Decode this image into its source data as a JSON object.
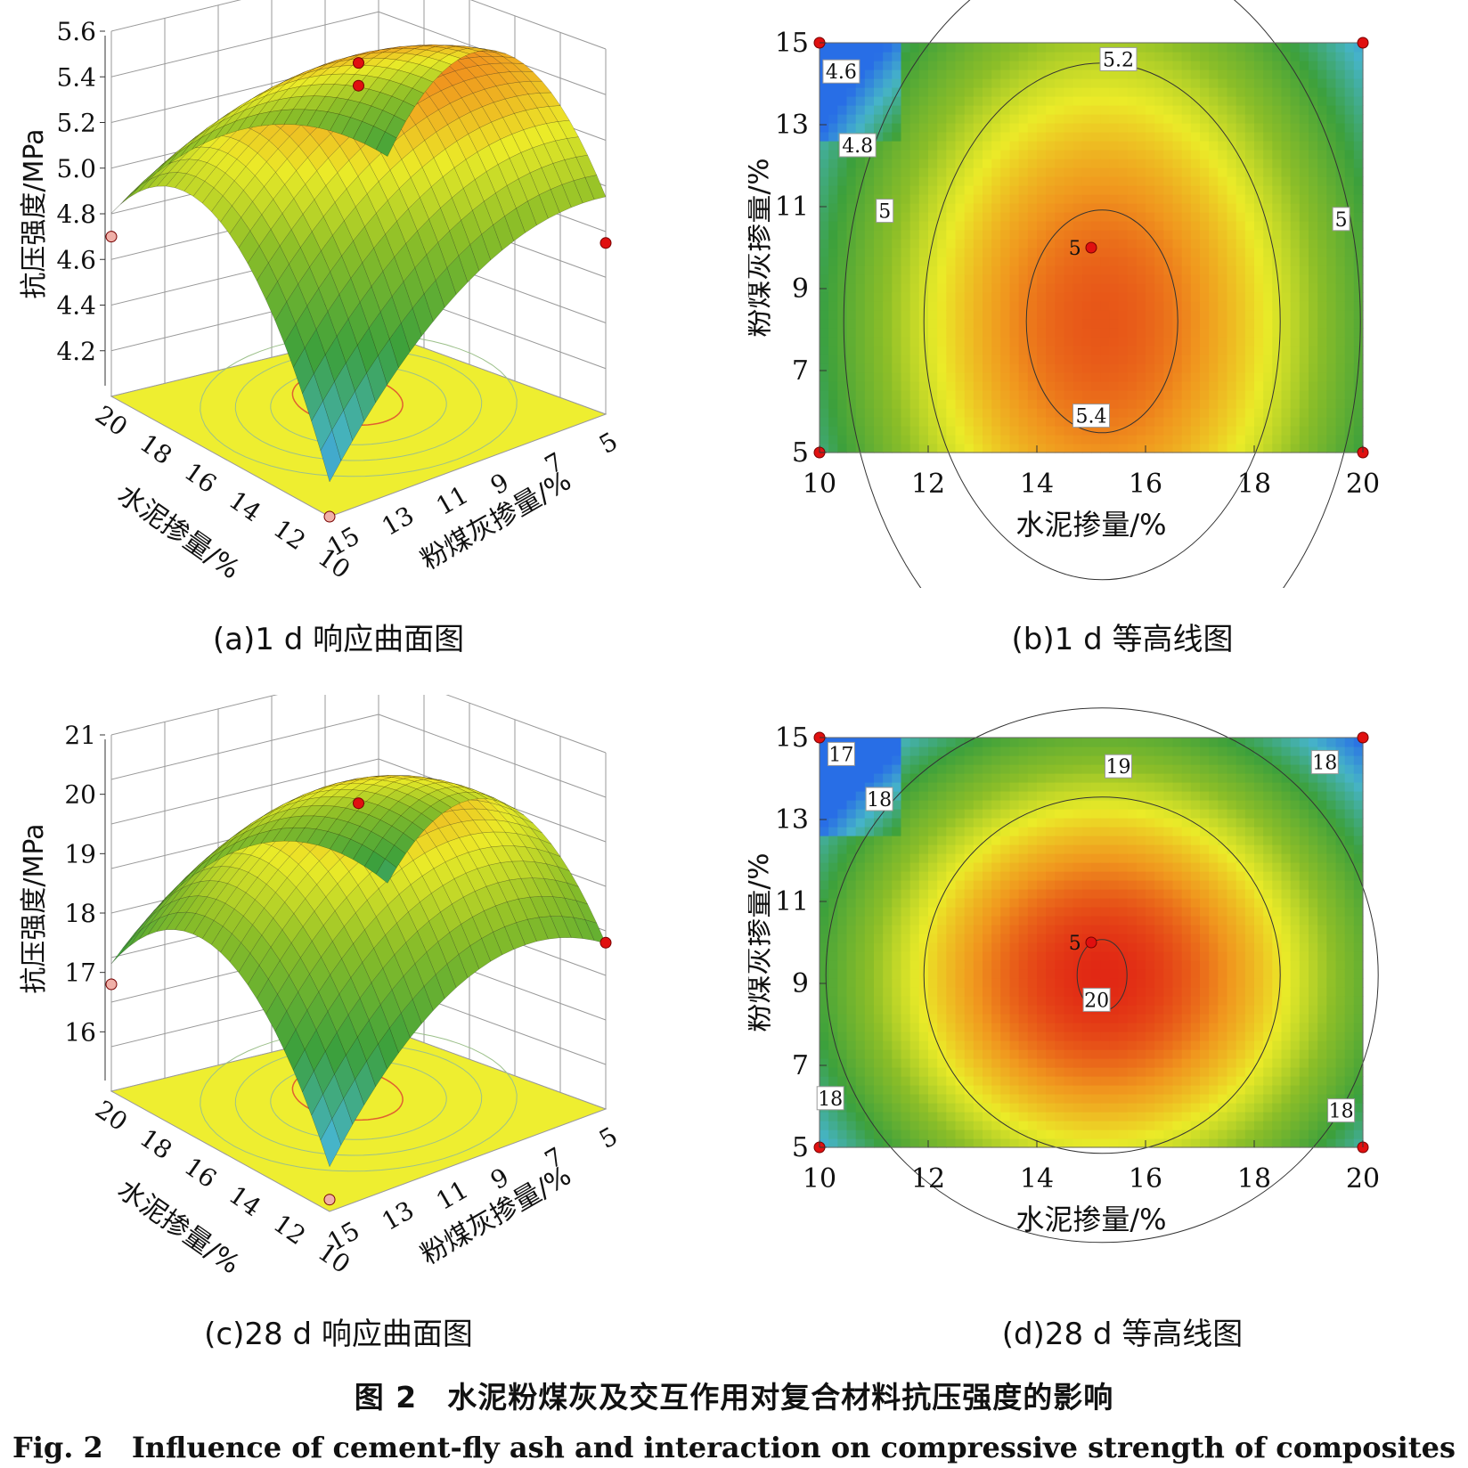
{
  "figure": {
    "title_cn": "图 2　水泥粉煤灰及交互作用对复合材料抗压强度的影响",
    "title_en": "Fig. 2　Influence of cement-fly ash and interaction on compressive strength of composites"
  },
  "chart_data": [
    {
      "id": "a",
      "type": "surface3d",
      "caption": "(a)1 d 响应曲面图",
      "zlabel": "抗压强度/MPa",
      "xlabel": "水泥掺量/%",
      "ylabel": "粉煤灰掺量/%",
      "z_ticks": [
        "4.2",
        "4.4",
        "4.6",
        "4.8",
        "5.0",
        "5.2",
        "5.4",
        "5.6"
      ],
      "x_ticks": [
        "20",
        "18",
        "16",
        "14",
        "12",
        "10"
      ],
      "y_ticks": [
        "15",
        "13",
        "11",
        "9",
        "7",
        "5"
      ],
      "zlim": [
        4.0,
        5.6
      ],
      "x_range": [
        10,
        20
      ],
      "y_range": [
        5,
        15
      ],
      "peak": {
        "cement": 15,
        "flyash": 8.5,
        "strength": 5.45
      },
      "design_points": [
        {
          "cement": 15,
          "flyash": 10,
          "strength": 5.5
        },
        {
          "cement": 15,
          "flyash": 10,
          "strength": 5.4
        },
        {
          "cement": 20,
          "flyash": 15,
          "strength": 4.7
        },
        {
          "cement": 10,
          "flyash": 5,
          "strength": 4.75
        },
        {
          "cement": 10,
          "flyash": 15,
          "strength": 4.0
        }
      ]
    },
    {
      "id": "b",
      "type": "contour",
      "caption": "(b)1 d 等高线图",
      "xlabel": "水泥掺量/%",
      "ylabel": "粉煤灰掺量/%",
      "x_ticks": [
        10,
        12,
        14,
        16,
        18,
        20
      ],
      "y_ticks": [
        5,
        7,
        9,
        11,
        13,
        15
      ],
      "xlim": [
        10,
        20
      ],
      "ylim": [
        5,
        15
      ],
      "contour_labels": [
        {
          "text": "4.6",
          "cement": 10.4,
          "flyash": 14.3
        },
        {
          "text": "4.8",
          "cement": 10.7,
          "flyash": 12.5
        },
        {
          "text": "5",
          "cement": 11.2,
          "flyash": 10.9
        },
        {
          "text": "5.2",
          "cement": 15.5,
          "flyash": 14.6
        },
        {
          "text": "5",
          "cement": 19.6,
          "flyash": 10.7
        },
        {
          "text": "5.4",
          "cement": 15.0,
          "flyash": 5.9
        },
        {
          "text": "5",
          "cement": 14.7,
          "flyash": 10
        }
      ],
      "points": [
        {
          "cement": 10,
          "flyash": 15
        },
        {
          "cement": 20,
          "flyash": 15
        },
        {
          "cement": 10,
          "flyash": 5
        },
        {
          "cement": 20,
          "flyash": 5
        },
        {
          "cement": 15,
          "flyash": 10
        }
      ]
    },
    {
      "id": "c",
      "type": "surface3d",
      "caption": "(c)28 d 响应曲面图",
      "zlabel": "抗压强度/MPa",
      "xlabel": "水泥掺量/%",
      "ylabel": "粉煤灰掺量/%",
      "z_ticks": [
        "16",
        "17",
        "18",
        "19",
        "20",
        "21"
      ],
      "x_ticks": [
        "20",
        "18",
        "16",
        "14",
        "12",
        "10"
      ],
      "y_ticks": [
        "15",
        "13",
        "11",
        "9",
        "7",
        "5"
      ],
      "zlim": [
        15,
        21
      ],
      "x_range": [
        10,
        20
      ],
      "y_range": [
        5,
        15
      ],
      "peak": {
        "cement": 15,
        "flyash": 9.2,
        "strength": 20.1
      },
      "design_points": [
        {
          "cement": 15,
          "flyash": 10,
          "strength": 20.0
        },
        {
          "cement": 20,
          "flyash": 15,
          "strength": 16.8
        },
        {
          "cement": 10,
          "flyash": 5,
          "strength": 17.8
        },
        {
          "cement": 10,
          "flyash": 15,
          "strength": 15.2
        }
      ]
    },
    {
      "id": "d",
      "type": "contour",
      "caption": "(d)28 d 等高线图",
      "xlabel": "水泥掺量/%",
      "ylabel": "粉煤灰掺量/%",
      "x_ticks": [
        10,
        12,
        14,
        16,
        18,
        20
      ],
      "y_ticks": [
        5,
        7,
        9,
        11,
        13,
        15
      ],
      "xlim": [
        10,
        20
      ],
      "ylim": [
        5,
        15
      ],
      "contour_labels": [
        {
          "text": "17",
          "cement": 10.4,
          "flyash": 14.6
        },
        {
          "text": "18",
          "cement": 11.1,
          "flyash": 13.5
        },
        {
          "text": "19",
          "cement": 15.5,
          "flyash": 14.3
        },
        {
          "text": "18",
          "cement": 19.3,
          "flyash": 14.4
        },
        {
          "text": "18",
          "cement": 10.2,
          "flyash": 6.2
        },
        {
          "text": "18",
          "cement": 19.6,
          "flyash": 5.9
        },
        {
          "text": "20",
          "cement": 15.1,
          "flyash": 8.6
        },
        {
          "text": "5",
          "cement": 14.7,
          "flyash": 10
        }
      ],
      "points": [
        {
          "cement": 10,
          "flyash": 15
        },
        {
          "cement": 20,
          "flyash": 15
        },
        {
          "cement": 10,
          "flyash": 5
        },
        {
          "cement": 20,
          "flyash": 5
        },
        {
          "cement": 15,
          "flyash": 10
        }
      ]
    }
  ]
}
